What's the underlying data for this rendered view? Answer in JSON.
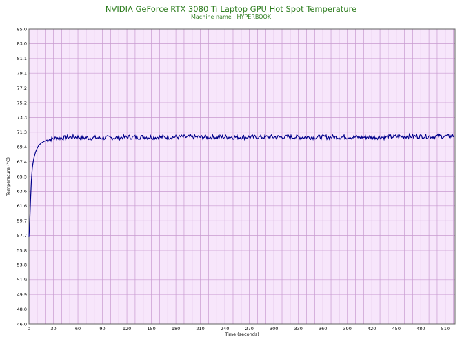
{
  "chart_data": {
    "type": "line",
    "title": "NVIDIA GeForce RTX 3080 Ti Laptop GPU Hot Spot Temperature",
    "subtitle": "Machine name : HYPERBOOK",
    "xlabel": "Time (seconds)",
    "ylabel": "Temperature (°C)",
    "xlim": [
      0,
      522
    ],
    "ylim": [
      46.0,
      85.0
    ],
    "x_ticks": [
      "0",
      "30",
      "60",
      "90",
      "120",
      "150",
      "180",
      "210",
      "240",
      "270",
      "300",
      "330",
      "360",
      "390",
      "420",
      "450",
      "480",
      "510"
    ],
    "y_ticks": [
      "85.0",
      "83.0",
      "81.1",
      "79.1",
      "77.2",
      "75.2",
      "73.3",
      "71.3",
      "69.4",
      "67.4",
      "65.5",
      "63.6",
      "61.6",
      "59.7",
      "57.7",
      "55.8",
      "53.8",
      "51.9",
      "49.9",
      "48.0",
      "46.0"
    ],
    "grid": true,
    "colors": {
      "plot_background": "#f7e6fb",
      "grid": "#c89ad0",
      "line": "#00008b",
      "title": "#2e7d1f"
    },
    "series": [
      {
        "x": [
          0,
          1,
          2,
          3,
          4,
          5,
          6,
          8,
          10,
          12,
          15,
          18,
          20,
          25,
          30,
          35,
          40,
          45,
          50,
          55,
          60,
          70,
          80,
          90,
          100,
          120,
          140,
          160,
          180,
          200,
          220,
          240,
          260,
          280,
          300,
          320,
          340,
          360,
          380,
          400,
          420,
          440,
          460,
          480,
          500,
          510,
          520
        ],
        "y": [
          57.5,
          59.5,
          62.5,
          65.0,
          66.5,
          67.3,
          67.9,
          68.7,
          69.2,
          69.6,
          69.9,
          70.1,
          70.2,
          70.4,
          70.5,
          70.6,
          70.6,
          70.6,
          70.7,
          70.7,
          70.7,
          70.6,
          70.6,
          70.6,
          70.6,
          70.7,
          70.7,
          70.7,
          70.7,
          70.7,
          70.7,
          70.7,
          70.7,
          70.7,
          70.7,
          70.7,
          70.7,
          70.7,
          70.7,
          70.7,
          70.7,
          70.7,
          70.8,
          70.8,
          70.8,
          70.8,
          70.8
        ]
      }
    ]
  }
}
